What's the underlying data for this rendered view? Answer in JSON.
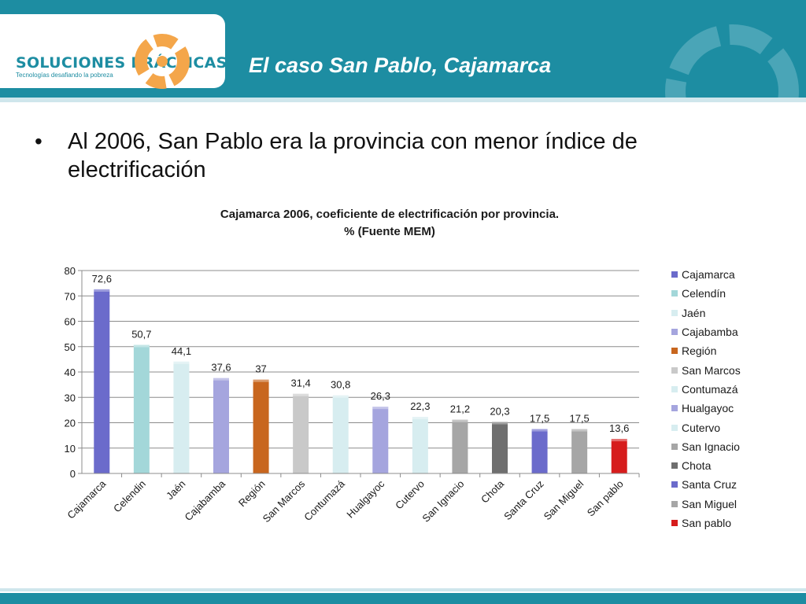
{
  "header": {
    "logo_text": "SOLUCIONES PRÁCTICAS",
    "logo_tagline": "Tecnologías desafiando la pobreza",
    "title": "El caso San Pablo, Cajamarca"
  },
  "bullet": {
    "text": "Al 2006, San Pablo era la provincia con menor índice de electrificación"
  },
  "colors": {
    "header": "#1d8da2",
    "header_band": "#cfe6ec",
    "logo_orange": "#f4a64a"
  },
  "chart_data": {
    "type": "bar",
    "title_lines": [
      "Cajamarca 2006, coeficiente de electrificación por provincia.",
      "% (Fuente MEM)"
    ],
    "categories": [
      "Cajamarca",
      "Celendín",
      "Jaén",
      "Cajabamba",
      "Región",
      "San Marcos",
      "Contumazá",
      "Hualgayoc",
      "Cutervo",
      "San Ignacio",
      "Chota",
      "Santa Cruz",
      "San Miguel",
      "San pablo"
    ],
    "tick_labels": [
      "Cajamarca",
      "Celendin",
      "Jaén",
      "Cajabamba",
      "Región",
      "San Marcos",
      "Contumazá",
      "Hualgayoc",
      "Cutervo",
      "San Ignacio",
      "Chota",
      "Santa Cruz",
      "San Miguel",
      "San pablo"
    ],
    "values": [
      72.6,
      50.7,
      44.1,
      37.6,
      37,
      31.4,
      30.8,
      26.3,
      22.3,
      21.2,
      20.3,
      17.5,
      17.5,
      13.6
    ],
    "value_labels": [
      "72,6",
      "50,7",
      "44,1",
      "37,6",
      "37",
      "31,4",
      "30,8",
      "26,3",
      "22,3",
      "21,2",
      "20,3",
      "17,5",
      "17,5",
      "13,6"
    ],
    "colors": [
      "#6b6bcb",
      "#a3d7d9",
      "#d7edf0",
      "#a5a5de",
      "#c8661e",
      "#c9c9c9",
      "#d7edf0",
      "#a5a5de",
      "#d7edf0",
      "#a6a6a6",
      "#6f6f6f",
      "#6b6bcb",
      "#a6a6a6",
      "#d61c1c"
    ],
    "ylim": [
      0,
      80
    ],
    "yticks": [
      0,
      10,
      20,
      30,
      40,
      50,
      60,
      70,
      80
    ],
    "grid": true,
    "legend_position": "right",
    "xlabel": "",
    "ylabel": ""
  }
}
